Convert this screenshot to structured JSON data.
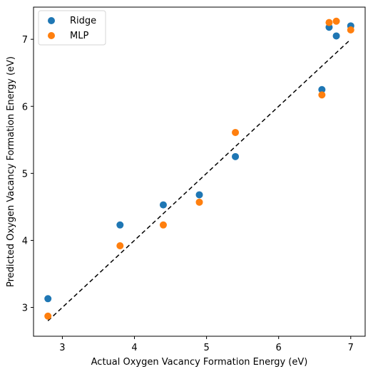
{
  "chart_data": {
    "type": "scatter",
    "title": "",
    "xlabel": "Actual Oxygen Vacancy Formation Energy (eV)",
    "ylabel": "Predicted Oxygen Vacancy Formation Energy (eV)",
    "xlim": [
      2.6,
      7.2
    ],
    "ylim": [
      2.57,
      7.48
    ],
    "xticks": [
      3,
      4,
      5,
      6,
      7
    ],
    "yticks": [
      3,
      4,
      5,
      6,
      7
    ],
    "grid": false,
    "legend_position": "top-left",
    "reference_line": {
      "style": "dashed",
      "color": "#000000",
      "x": [
        2.8,
        7.0
      ],
      "y": [
        2.8,
        7.0
      ]
    },
    "series": [
      {
        "name": "Ridge",
        "color": "#1f77b4",
        "x": [
          2.8,
          3.8,
          4.4,
          4.9,
          5.4,
          6.6,
          6.7,
          6.8,
          7.0
        ],
        "y": [
          3.13,
          4.23,
          4.53,
          4.68,
          5.25,
          6.25,
          7.18,
          7.05,
          7.2
        ]
      },
      {
        "name": "MLP",
        "color": "#ff7f0e",
        "x": [
          2.8,
          3.8,
          4.4,
          4.9,
          5.4,
          6.6,
          6.7,
          6.8,
          7.0
        ],
        "y": [
          2.87,
          3.92,
          4.23,
          4.57,
          5.61,
          6.17,
          7.25,
          7.27,
          7.14
        ]
      }
    ]
  }
}
